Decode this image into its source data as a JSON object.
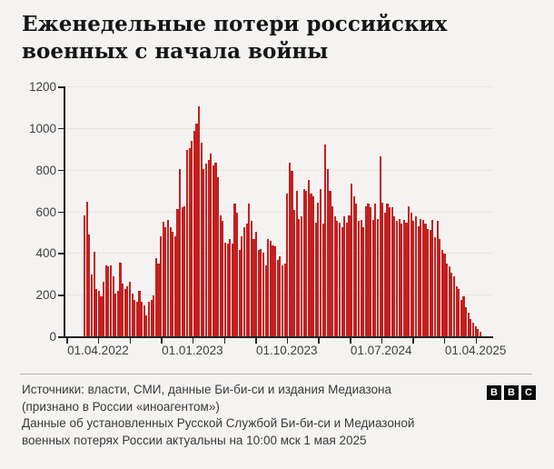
{
  "page": {
    "background": "#f4f3f1"
  },
  "title_lines": [
    "Еженедельные потери российских",
    "военных с начала войны"
  ],
  "chart_data": {
    "type": "bar",
    "title": "Еженедельные потери российских военных с начала войны",
    "xlabel": "",
    "ylabel": "",
    "ylim": [
      0,
      1200
    ],
    "grid": "horizontal",
    "bar_color": "#c3201f",
    "axis_color": "#222222",
    "y_ticks": [
      0,
      200,
      400,
      600,
      800,
      1000,
      1200
    ],
    "x_tick_labels": [
      "01.04.2022",
      "01.01.2023",
      "01.10.2023",
      "01.07.2024",
      "01.04.2025"
    ],
    "series_name": "Еженедельные потери",
    "values": [
      580,
      645,
      490,
      295,
      405,
      225,
      220,
      190,
      260,
      340,
      335,
      340,
      290,
      205,
      220,
      355,
      255,
      225,
      240,
      260,
      205,
      175,
      165,
      220,
      165,
      150,
      100,
      165,
      175,
      195,
      375,
      350,
      480,
      550,
      525,
      560,
      525,
      500,
      480,
      610,
      805,
      620,
      625,
      895,
      905,
      940,
      985,
      1020,
      1105,
      930,
      805,
      830,
      845,
      875,
      820,
      835,
      765,
      580,
      555,
      450,
      445,
      465,
      445,
      635,
      595,
      415,
      480,
      525,
      540,
      635,
      555,
      465,
      500,
      415,
      420,
      400,
      340,
      465,
      460,
      435,
      430,
      365,
      385,
      340,
      350,
      685,
      835,
      795,
      605,
      700,
      565,
      575,
      705,
      700,
      750,
      685,
      670,
      545,
      640,
      705,
      540,
      920,
      805,
      700,
      625,
      575,
      555,
      545,
      525,
      575,
      545,
      580,
      735,
      670,
      635,
      555,
      560,
      525,
      625,
      635,
      620,
      560,
      635,
      565,
      865,
      640,
      595,
      635,
      620,
      620,
      575,
      555,
      565,
      540,
      560,
      545,
      625,
      595,
      555,
      575,
      530,
      565,
      560,
      540,
      515,
      510,
      560,
      475,
      555,
      465,
      415,
      395,
      350,
      335,
      305,
      290,
      240,
      225,
      175,
      190,
      140,
      115,
      85,
      65,
      50,
      35,
      20
    ]
  },
  "footer": {
    "lines": [
      "Источники: власти, СМИ, данные Би-би-си и издания Медиазона",
      "(признано в России «иноагентом»)",
      "Данные об установленных Русской Службой Би-би-си и Медиазоной",
      "военных потерях России актуальны на 10:00 мск 1 мая 2025"
    ],
    "logo": [
      "B",
      "B",
      "C"
    ]
  }
}
